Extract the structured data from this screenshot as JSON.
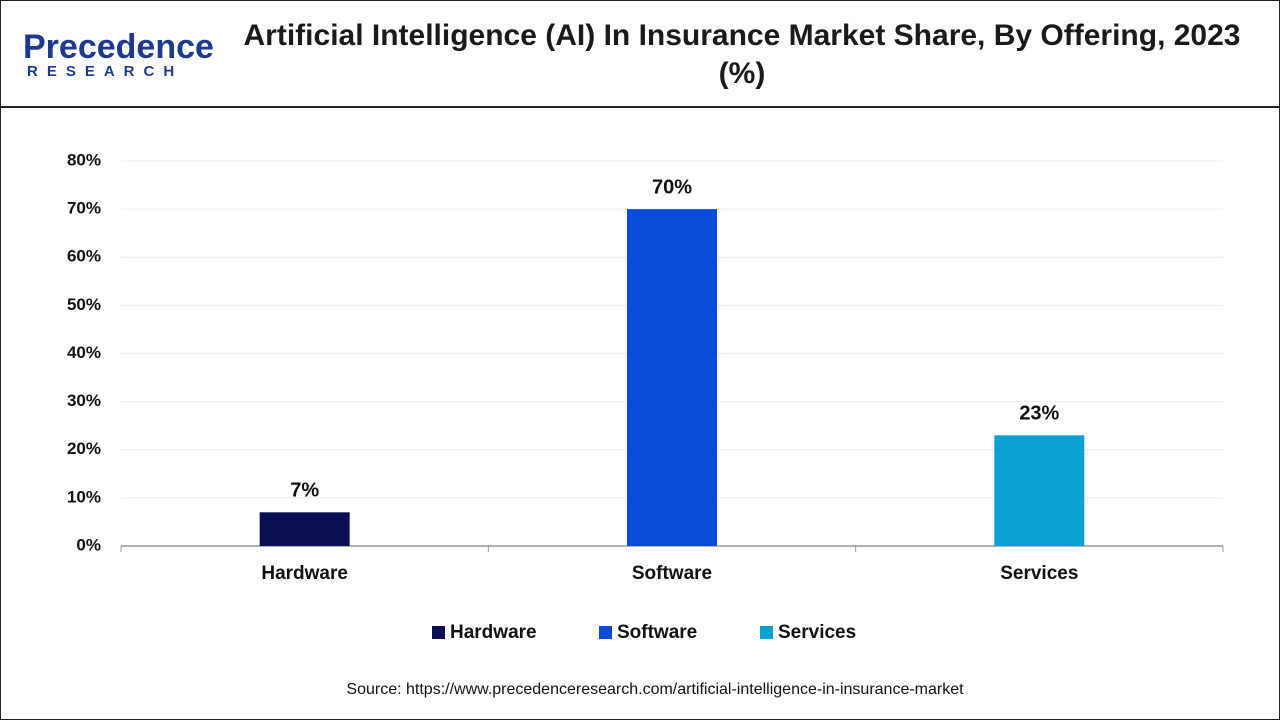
{
  "logo": {
    "name": "Precedence",
    "tagline": "RESEARCH"
  },
  "chart_data": {
    "type": "bar",
    "title": "Artificial Intelligence (AI) In Insurance Market Share, By Offering, 2023 (%)",
    "categories": [
      "Hardware",
      "Software",
      "Services"
    ],
    "values": [
      7,
      70,
      23
    ],
    "value_labels": [
      "7%",
      "70%",
      "23%"
    ],
    "colors": [
      "#0b0f52",
      "#0a4bd8",
      "#0aa0d1"
    ],
    "ylim": [
      0,
      80
    ],
    "yticks": [
      {
        "value": 0,
        "label": "0%"
      },
      {
        "value": 10,
        "label": "10%"
      },
      {
        "value": 20,
        "label": "20%"
      },
      {
        "value": 30,
        "label": "30%"
      },
      {
        "value": 40,
        "label": "40%"
      },
      {
        "value": 50,
        "label": "50%"
      },
      {
        "value": 60,
        "label": "60%"
      },
      {
        "value": 70,
        "label": "70%"
      },
      {
        "value": 80,
        "label": "80%"
      }
    ],
    "grid": true,
    "legend": "bottom",
    "source": "Source: https://www.precedenceresearch.com/artificial-intelligence-in-insurance-market"
  }
}
